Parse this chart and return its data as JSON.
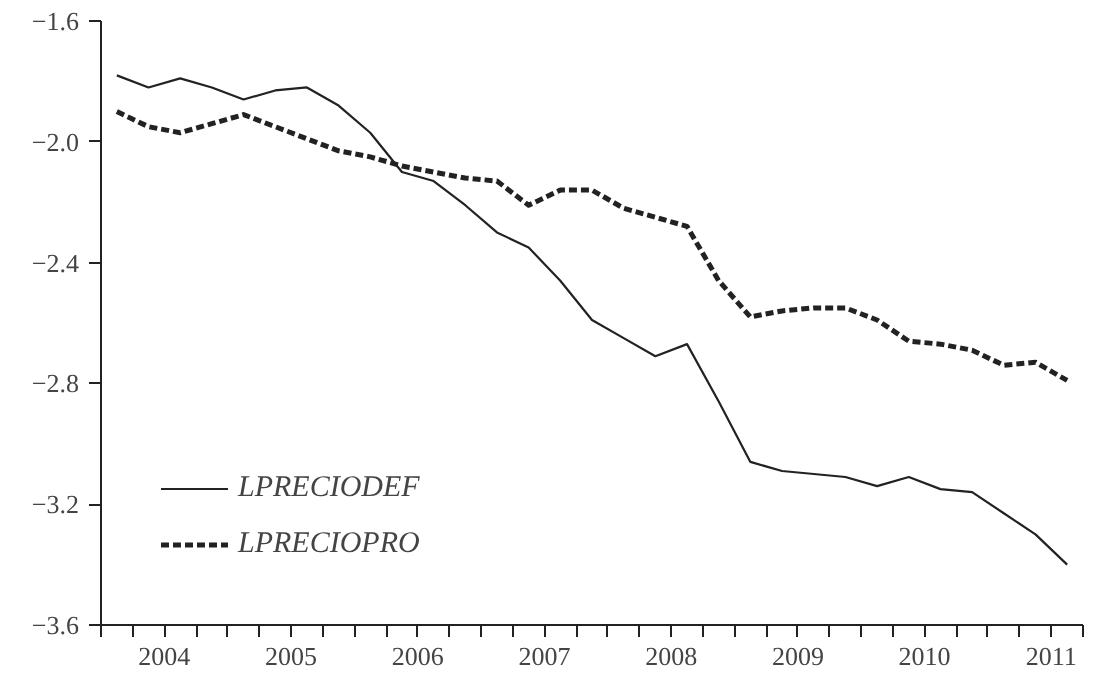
{
  "chart_data": {
    "type": "line",
    "xlim": [
      2004,
      2011.75
    ],
    "ylim": [
      -3.6,
      -1.6
    ],
    "yticks": [
      {
        "value": -1.6,
        "label": "−1.6"
      },
      {
        "value": -2.0,
        "label": "−2.0"
      },
      {
        "value": -2.4,
        "label": "−2.4"
      },
      {
        "value": -2.8,
        "label": "−2.8"
      },
      {
        "value": -3.2,
        "label": "−3.2"
      },
      {
        "value": -3.6,
        "label": "−3.6"
      }
    ],
    "xticks": [
      {
        "value": 2004,
        "label": null
      },
      {
        "value": 2004.25,
        "label": null
      },
      {
        "value": 2004.5,
        "label": "2004"
      },
      {
        "value": 2004.75,
        "label": null
      },
      {
        "value": 2005,
        "label": null
      },
      {
        "value": 2005.25,
        "label": null
      },
      {
        "value": 2005.5,
        "label": "2005"
      },
      {
        "value": 2005.75,
        "label": null
      },
      {
        "value": 2006,
        "label": null
      },
      {
        "value": 2006.25,
        "label": null
      },
      {
        "value": 2006.5,
        "label": "2006"
      },
      {
        "value": 2006.75,
        "label": null
      },
      {
        "value": 2007,
        "label": null
      },
      {
        "value": 2007.25,
        "label": null
      },
      {
        "value": 2007.5,
        "label": "2007"
      },
      {
        "value": 2007.75,
        "label": null
      },
      {
        "value": 2008,
        "label": null
      },
      {
        "value": 2008.25,
        "label": null
      },
      {
        "value": 2008.5,
        "label": "2008"
      },
      {
        "value": 2008.75,
        "label": null
      },
      {
        "value": 2009,
        "label": null
      },
      {
        "value": 2009.25,
        "label": null
      },
      {
        "value": 2009.5,
        "label": "2009"
      },
      {
        "value": 2009.75,
        "label": null
      },
      {
        "value": 2010,
        "label": null
      },
      {
        "value": 2010.25,
        "label": null
      },
      {
        "value": 2010.5,
        "label": "2010"
      },
      {
        "value": 2010.75,
        "label": null
      },
      {
        "value": 2011,
        "label": null
      },
      {
        "value": 2011.25,
        "label": null
      },
      {
        "value": 2011.5,
        "label": "2011"
      },
      {
        "value": 2011.75,
        "label": null
      }
    ],
    "x": [
      2004.125,
      2004.375,
      2004.625,
      2004.875,
      2005.125,
      2005.375,
      2005.625,
      2005.875,
      2006.125,
      2006.375,
      2006.625,
      2006.875,
      2007.125,
      2007.375,
      2007.625,
      2007.875,
      2008.125,
      2008.375,
      2008.625,
      2008.875,
      2009.125,
      2009.375,
      2009.625,
      2009.875,
      2010.125,
      2010.375,
      2010.625,
      2010.875,
      2011.125,
      2011.375,
      2011.625
    ],
    "series": [
      {
        "name": "LPRECIODEF",
        "color": "#222222",
        "line_style": "solid",
        "values": [
          -1.78,
          -1.82,
          -1.79,
          -1.82,
          -1.86,
          -1.83,
          -1.82,
          -1.88,
          -1.97,
          -2.1,
          -2.13,
          -2.21,
          -2.3,
          -2.35,
          -2.46,
          -2.59,
          -2.65,
          -2.71,
          -2.67,
          -2.86,
          -3.06,
          -3.09,
          -3.1,
          -3.11,
          -3.14,
          -3.11,
          -3.15,
          -3.16,
          -3.23,
          -3.3,
          -3.4
        ]
      },
      {
        "name": "LPRECIOPRO",
        "color": "#222222",
        "line_style": "dashed",
        "values": [
          -1.9,
          -1.95,
          -1.97,
          -1.94,
          -1.91,
          -1.95,
          -1.99,
          -2.03,
          -2.05,
          -2.08,
          -2.1,
          -2.12,
          -2.13,
          -2.21,
          -2.16,
          -2.16,
          -2.22,
          -2.25,
          -2.28,
          -2.46,
          -2.58,
          -2.56,
          -2.55,
          -2.55,
          -2.59,
          -2.66,
          -2.67,
          -2.69,
          -2.74,
          -2.73,
          -2.79
        ]
      }
    ],
    "legend": "bottom left",
    "grid": false,
    "marker": "none"
  }
}
